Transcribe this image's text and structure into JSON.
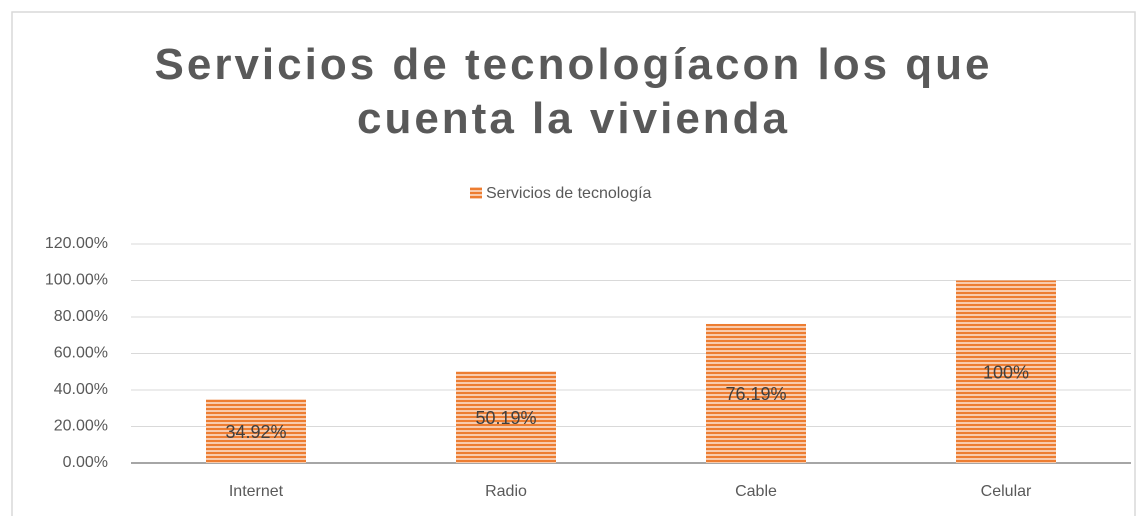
{
  "chart_data": {
    "type": "bar",
    "title": "Servicios de tecnologíacon los que cuenta la vivienda",
    "categories": [
      "Internet",
      "Radio",
      "Cable",
      "Celular"
    ],
    "series": [
      {
        "name": "Servicios de tecnología",
        "color": "#ed7d31",
        "values": [
          34.92,
          50.19,
          76.19,
          100
        ],
        "value_labels": [
          "34.92%",
          "50.19%",
          "76.19%",
          "100%"
        ]
      }
    ],
    "ylim": [
      0,
      120
    ],
    "yticks": [
      {
        "value": 0,
        "label": "0.00%"
      },
      {
        "value": 20,
        "label": "20.00%"
      },
      {
        "value": 40,
        "label": "40.00%"
      },
      {
        "value": 60,
        "label": "60.00%"
      },
      {
        "value": 80,
        "label": "80.00%"
      },
      {
        "value": 100,
        "label": "100.00%"
      },
      {
        "value": 120,
        "label": "120.00%"
      }
    ],
    "grid": true,
    "legend": "top"
  }
}
